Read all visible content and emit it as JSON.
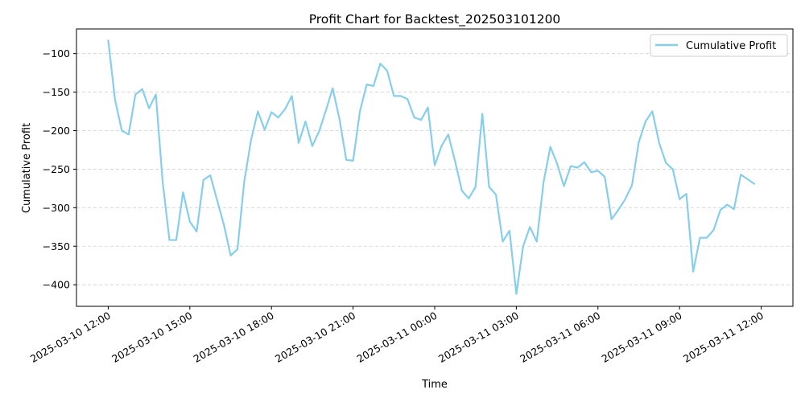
{
  "chart_data": {
    "type": "line",
    "title": "Profit Chart for Backtest_202503101200",
    "xlabel": "Time",
    "ylabel": "Cumulative Profit",
    "xlim": [
      "2025-03-10 10:50",
      "2025-03-11 13:10"
    ],
    "ylim": [
      -428,
      -68
    ],
    "grid": {
      "y": true,
      "x": false,
      "style": "dashed"
    },
    "legend": {
      "position": "top-right"
    },
    "x_ticks": [
      {
        "value": "2025-03-10 12:00",
        "label": "2025-03-10 12:00"
      },
      {
        "value": "2025-03-10 15:00",
        "label": "2025-03-10 15:00"
      },
      {
        "value": "2025-03-10 18:00",
        "label": "2025-03-10 18:00"
      },
      {
        "value": "2025-03-10 21:00",
        "label": "2025-03-10 21:00"
      },
      {
        "value": "2025-03-11 00:00",
        "label": "2025-03-11 00:00"
      },
      {
        "value": "2025-03-11 03:00",
        "label": "2025-03-11 03:00"
      },
      {
        "value": "2025-03-11 06:00",
        "label": "2025-03-11 06:00"
      },
      {
        "value": "2025-03-11 09:00",
        "label": "2025-03-11 09:00"
      },
      {
        "value": "2025-03-11 12:00",
        "label": "2025-03-11 12:00"
      }
    ],
    "y_ticks": [
      {
        "value": -100,
        "label": "−100"
      },
      {
        "value": -150,
        "label": "−150"
      },
      {
        "value": -200,
        "label": "−200"
      },
      {
        "value": -250,
        "label": "−250"
      },
      {
        "value": -300,
        "label": "−300"
      },
      {
        "value": -350,
        "label": "−350"
      },
      {
        "value": -400,
        "label": "−400"
      }
    ],
    "series": [
      {
        "name": "Cumulative Profit",
        "color": "#87ceeb",
        "points": [
          [
            "2025-03-10 12:00",
            -83
          ],
          [
            "2025-03-10 12:15",
            -160
          ],
          [
            "2025-03-10 12:30",
            -200
          ],
          [
            "2025-03-10 12:45",
            -205
          ],
          [
            "2025-03-10 13:00",
            -153
          ],
          [
            "2025-03-10 13:15",
            -146
          ],
          [
            "2025-03-10 13:30",
            -171
          ],
          [
            "2025-03-10 13:45",
            -153
          ],
          [
            "2025-03-10 14:00",
            -266
          ],
          [
            "2025-03-10 14:15",
            -342
          ],
          [
            "2025-03-10 14:30",
            -342
          ],
          [
            "2025-03-10 14:45",
            -280
          ],
          [
            "2025-03-10 15:00",
            -318
          ],
          [
            "2025-03-10 15:15",
            -331
          ],
          [
            "2025-03-10 15:30",
            -264
          ],
          [
            "2025-03-10 15:45",
            -258
          ],
          [
            "2025-03-10 16:00",
            -290
          ],
          [
            "2025-03-10 16:15",
            -322
          ],
          [
            "2025-03-10 16:30",
            -362
          ],
          [
            "2025-03-10 16:45",
            -354
          ],
          [
            "2025-03-10 17:00",
            -266
          ],
          [
            "2025-03-10 17:15",
            -212
          ],
          [
            "2025-03-10 17:30",
            -175
          ],
          [
            "2025-03-10 17:45",
            -199
          ],
          [
            "2025-03-10 18:00",
            -176
          ],
          [
            "2025-03-10 18:15",
            -183
          ],
          [
            "2025-03-10 18:30",
            -172
          ],
          [
            "2025-03-10 18:45",
            -155
          ],
          [
            "2025-03-10 19:00",
            -216
          ],
          [
            "2025-03-10 19:15",
            -188
          ],
          [
            "2025-03-10 19:30",
            -220
          ],
          [
            "2025-03-10 19:45",
            -201
          ],
          [
            "2025-03-10 20:00",
            -174
          ],
          [
            "2025-03-10 20:15",
            -145
          ],
          [
            "2025-03-10 20:30",
            -185
          ],
          [
            "2025-03-10 20:45",
            -238
          ],
          [
            "2025-03-10 21:00",
            -239
          ],
          [
            "2025-03-10 21:15",
            -175
          ],
          [
            "2025-03-10 21:30",
            -140
          ],
          [
            "2025-03-10 21:45",
            -142
          ],
          [
            "2025-03-10 22:00",
            -113
          ],
          [
            "2025-03-10 22:15",
            -122
          ],
          [
            "2025-03-10 22:30",
            -155
          ],
          [
            "2025-03-10 22:45",
            -155
          ],
          [
            "2025-03-10 23:00",
            -159
          ],
          [
            "2025-03-10 23:15",
            -183
          ],
          [
            "2025-03-10 23:30",
            -186
          ],
          [
            "2025-03-10 23:45",
            -170
          ],
          [
            "2025-03-11 00:00",
            -245
          ],
          [
            "2025-03-11 00:15",
            -220
          ],
          [
            "2025-03-11 00:30",
            -205
          ],
          [
            "2025-03-11 00:45",
            -240
          ],
          [
            "2025-03-11 01:00",
            -278
          ],
          [
            "2025-03-11 01:15",
            -288
          ],
          [
            "2025-03-11 01:30",
            -273
          ],
          [
            "2025-03-11 01:45",
            -178
          ],
          [
            "2025-03-11 02:00",
            -273
          ],
          [
            "2025-03-11 02:15",
            -283
          ],
          [
            "2025-03-11 02:30",
            -344
          ],
          [
            "2025-03-11 02:45",
            -330
          ],
          [
            "2025-03-11 03:00",
            -412
          ],
          [
            "2025-03-11 03:15",
            -350
          ],
          [
            "2025-03-11 03:30",
            -325
          ],
          [
            "2025-03-11 03:45",
            -344
          ],
          [
            "2025-03-11 04:00",
            -267
          ],
          [
            "2025-03-11 04:15",
            -221
          ],
          [
            "2025-03-11 04:30",
            -243
          ],
          [
            "2025-03-11 04:45",
            -272
          ],
          [
            "2025-03-11 05:00",
            -246
          ],
          [
            "2025-03-11 05:15",
            -248
          ],
          [
            "2025-03-11 05:30",
            -241
          ],
          [
            "2025-03-11 05:45",
            -254
          ],
          [
            "2025-03-11 06:00",
            -252
          ],
          [
            "2025-03-11 06:15",
            -260
          ],
          [
            "2025-03-11 06:30",
            -315
          ],
          [
            "2025-03-11 06:45",
            -303
          ],
          [
            "2025-03-11 07:00",
            -289
          ],
          [
            "2025-03-11 07:15",
            -271
          ],
          [
            "2025-03-11 07:30",
            -215
          ],
          [
            "2025-03-11 07:45",
            -188
          ],
          [
            "2025-03-11 08:00",
            -175
          ],
          [
            "2025-03-11 08:15",
            -216
          ],
          [
            "2025-03-11 08:30",
            -242
          ],
          [
            "2025-03-11 08:45",
            -250
          ],
          [
            "2025-03-11 09:00",
            -289
          ],
          [
            "2025-03-11 09:15",
            -282
          ],
          [
            "2025-03-11 09:30",
            -383
          ],
          [
            "2025-03-11 09:45",
            -339
          ],
          [
            "2025-03-11 10:00",
            -339
          ],
          [
            "2025-03-11 10:15",
            -329
          ],
          [
            "2025-03-11 10:30",
            -303
          ],
          [
            "2025-03-11 10:45",
            -296
          ],
          [
            "2025-03-11 11:00",
            -302
          ],
          [
            "2025-03-11 11:15",
            -257
          ],
          [
            "2025-03-11 11:30",
            -263
          ],
          [
            "2025-03-11 11:45",
            -269
          ]
        ]
      }
    ]
  }
}
